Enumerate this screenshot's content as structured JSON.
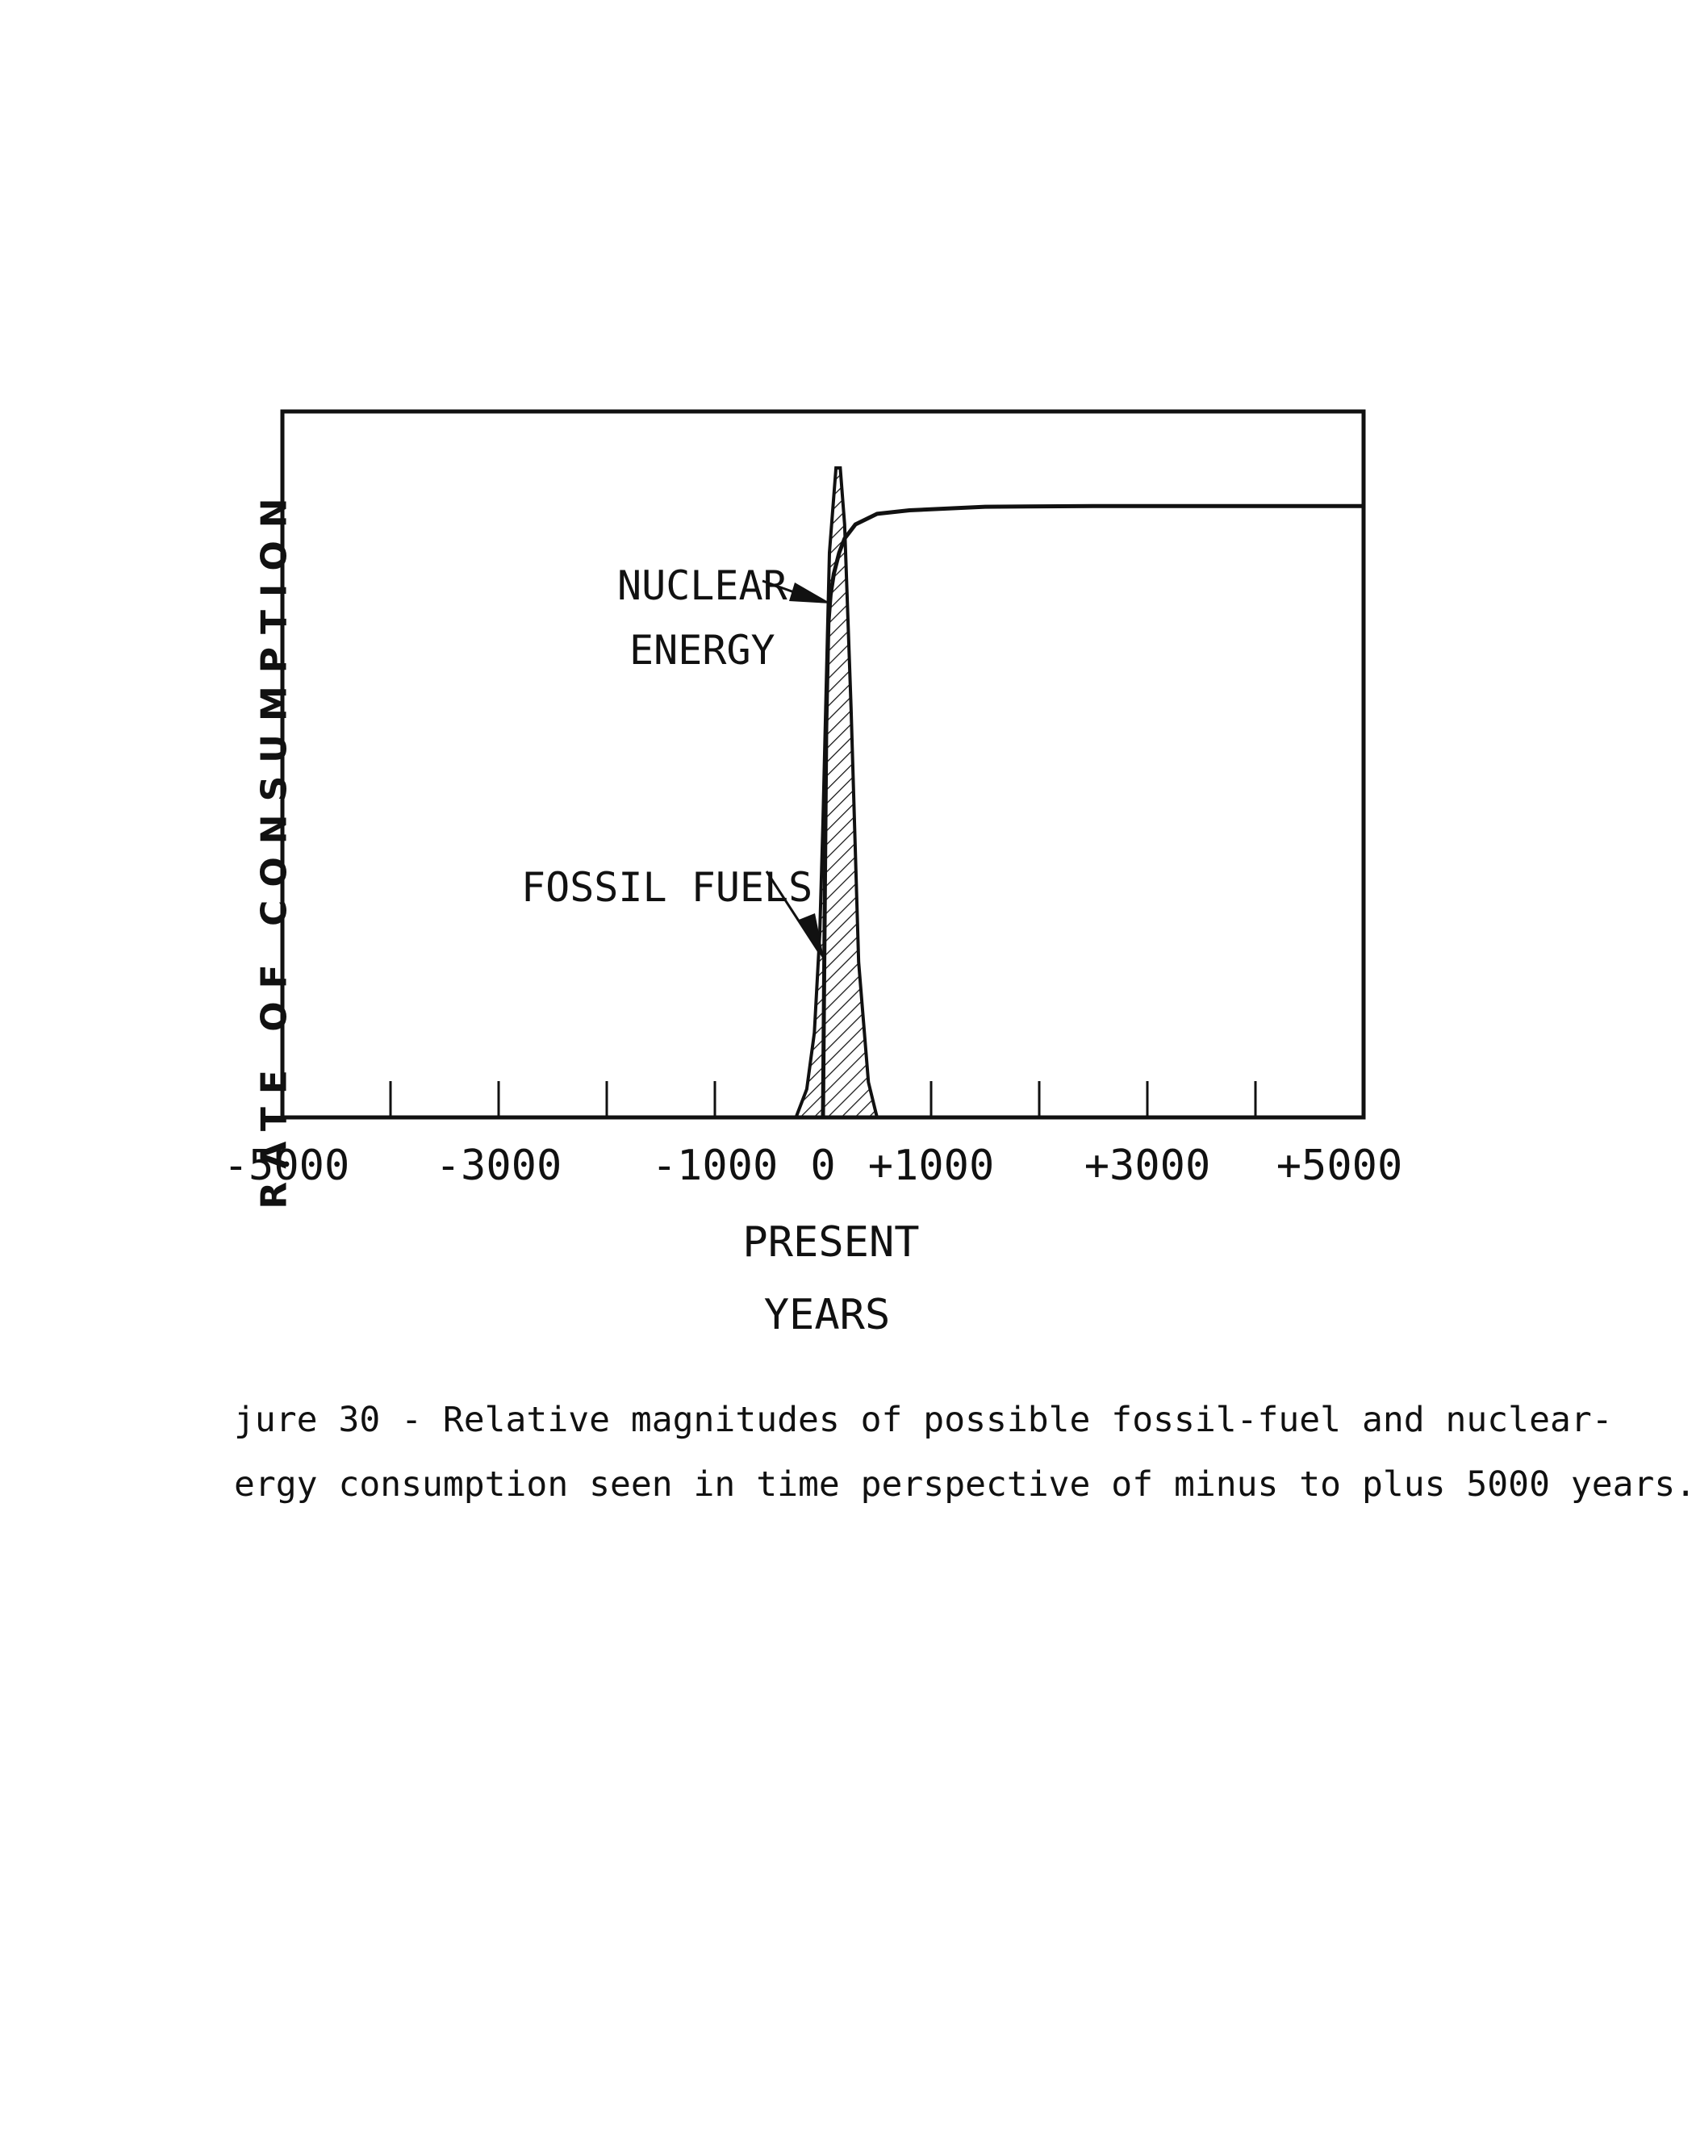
{
  "chart_data": {
    "type": "line",
    "title": "",
    "xlabel": "YEARS",
    "ylabel": "RATE OF CONSUMPTION",
    "xlim": [
      -5000,
      5000
    ],
    "ylim": [
      0,
      100
    ],
    "x_tick_labels": [
      {
        "x": -5000,
        "label": "-5000"
      },
      {
        "x": -3000,
        "label": "-3000"
      },
      {
        "x": -1000,
        "label": "-1000"
      },
      {
        "x": 0,
        "label": "0"
      },
      {
        "x": 1000,
        "label": "+1000"
      },
      {
        "x": 3000,
        "label": "+3000"
      },
      {
        "x": 5000,
        "label": "+5000"
      }
    ],
    "x_tick_marks": [
      -4000,
      -3000,
      -2000,
      -1000,
      1000,
      2000,
      3000,
      4000
    ],
    "present_marker": {
      "x": 0,
      "label": "PRESENT"
    },
    "grid": false,
    "series": [
      {
        "name": "NUCLEAR ENERGY",
        "x": [
          0,
          10,
          30,
          50,
          70,
          100,
          150,
          200,
          300,
          500,
          800,
          1500,
          2500,
          4000,
          5000
        ],
        "y": [
          0,
          18,
          55,
          70,
          74,
          77,
          80,
          82,
          84,
          85.5,
          86,
          86.5,
          86.6,
          86.6,
          86.6
        ]
      },
      {
        "name": "FOSSIL FUELS",
        "x": [
          -250,
          -150,
          -80,
          -30,
          0,
          60,
          120,
          160,
          200,
          260,
          330,
          420,
          500
        ],
        "y": [
          0,
          4,
          12,
          26,
          42,
          80,
          92,
          92,
          84,
          58,
          22,
          5,
          0
        ],
        "fill": "hatched"
      }
    ],
    "annotations": [
      {
        "lines": [
          "NUCLEAR",
          "ENERGY"
        ],
        "points_to": "NUCLEAR ENERGY"
      },
      {
        "lines": [
          "FOSSIL FUELS"
        ],
        "points_to": "FOSSIL FUELS"
      }
    ]
  },
  "caption": {
    "line1": "jure 30 - Relative magnitudes of possible fossil-fuel and nuclear-",
    "line2": "ergy consumption seen in time perspective of minus to plus 5000 years."
  },
  "colors": {
    "ink": "#111111",
    "paper": "#ffffff"
  }
}
